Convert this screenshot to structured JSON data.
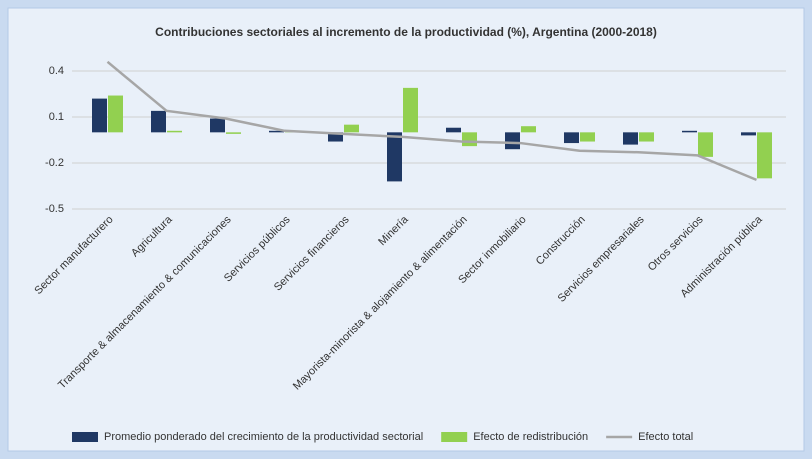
{
  "chart_data": {
    "type": "bar-line",
    "title": "Contribuciones sectoriales al incremento de la productividad (%), Argentina (2000-2018)",
    "categories": [
      "Sector manufacturero",
      "Agricultura",
      "Transporte & almacenamiento & comunicaciones",
      "Servicios públicos",
      "Servicios financieros",
      "Minería",
      "Mayorista-minorista & alojamiento & alimentación",
      "Sector inmobiliario",
      "Construcción",
      "Servicios empresariales",
      "Otros servicios",
      "Administración pública"
    ],
    "series": [
      {
        "name": "Promedio ponderado del crecimiento de la productividad sectorial",
        "type": "bar",
        "color": "#1f3864",
        "values": [
          0.22,
          0.14,
          0.09,
          0.01,
          -0.06,
          -0.32,
          0.03,
          -0.11,
          -0.07,
          -0.08,
          0.01,
          -0.02
        ]
      },
      {
        "name": "Efecto de redistribución",
        "type": "bar",
        "color": "#92d050",
        "values": [
          0.24,
          0.01,
          -0.01,
          0.01,
          0.05,
          0.29,
          -0.09,
          0.04,
          -0.06,
          -0.06,
          -0.16,
          -0.3
        ]
      },
      {
        "name": "Efecto total",
        "type": "line",
        "color": "#a6a6a6",
        "values": [
          0.46,
          0.14,
          0.09,
          0.01,
          -0.01,
          -0.03,
          -0.06,
          -0.07,
          -0.12,
          -0.13,
          -0.15,
          -0.31
        ]
      }
    ],
    "ylim": [
      -0.5,
      0.6
    ],
    "yticks": [
      0.4,
      0.1,
      -0.2,
      -0.5
    ],
    "grid": true,
    "legend": "bottom"
  }
}
